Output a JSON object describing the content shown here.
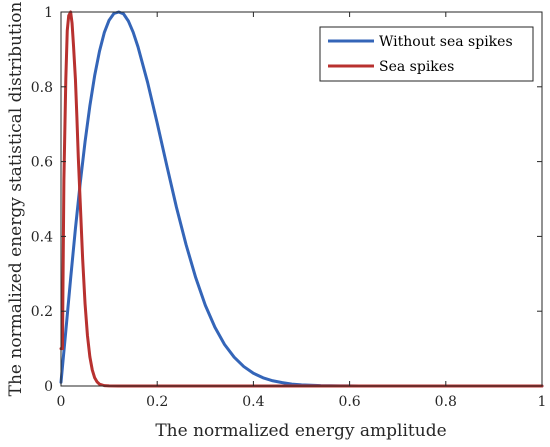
{
  "chart_data": {
    "type": "line",
    "title": "",
    "xlabel": "The normalized energy amplitude",
    "ylabel": "The normalized energy statistical distribution",
    "xlim": [
      0,
      1
    ],
    "ylim": [
      0,
      1
    ],
    "xticks": [
      "0",
      "0.2",
      "0.4",
      "0.6",
      "0.8",
      "1"
    ],
    "yticks": [
      "0",
      "0.2",
      "0.4",
      "0.6",
      "0.8",
      "1"
    ],
    "grid": false,
    "legend_position": "top-right",
    "series": [
      {
        "name": "Without sea spikes",
        "color": "#3465B8",
        "x": [
          0,
          0.01,
          0.02,
          0.03,
          0.04,
          0.05,
          0.06,
          0.07,
          0.08,
          0.09,
          0.1,
          0.11,
          0.12,
          0.13,
          0.14,
          0.15,
          0.16,
          0.18,
          0.2,
          0.22,
          0.24,
          0.26,
          0.28,
          0.3,
          0.32,
          0.34,
          0.36,
          0.38,
          0.4,
          0.42,
          0.44,
          0.46,
          0.48,
          0.5,
          0.52,
          0.54,
          0.56,
          0.58,
          0.6,
          0.62,
          0.64,
          0.66,
          0.68,
          0.7,
          0.75,
          0.8,
          0.85,
          0.9,
          0.95,
          1.0
        ],
        "values": [
          0.01,
          0.147,
          0.287,
          0.421,
          0.543,
          0.653,
          0.749,
          0.83,
          0.895,
          0.945,
          0.978,
          0.996,
          1.0,
          0.995,
          0.976,
          0.946,
          0.907,
          0.812,
          0.703,
          0.589,
          0.478,
          0.378,
          0.29,
          0.216,
          0.157,
          0.111,
          0.077,
          0.052,
          0.034,
          0.022,
          0.014,
          0.009,
          0.005,
          0.003,
          0.002,
          0.001,
          0.0007,
          0.0004,
          0.0002,
          0.0001,
          0,
          0,
          0,
          0,
          0,
          0,
          0,
          0,
          0,
          0
        ]
      },
      {
        "name": "Sea spikes",
        "color": "#B8312F",
        "x": [
          0,
          0.003,
          0.006,
          0.01,
          0.013,
          0.016,
          0.02,
          0.023,
          0.026,
          0.03,
          0.033,
          0.036,
          0.04,
          0.045,
          0.05,
          0.055,
          0.06,
          0.065,
          0.07,
          0.075,
          0.08,
          0.09,
          0.1,
          0.12,
          0.15,
          0.2,
          0.3,
          0.5,
          0.7,
          1.0
        ],
        "values": [
          0.1,
          0.1,
          0.55,
          0.82,
          0.95,
          0.99,
          1.0,
          0.97,
          0.91,
          0.82,
          0.72,
          0.61,
          0.49,
          0.34,
          0.22,
          0.135,
          0.078,
          0.043,
          0.022,
          0.011,
          0.005,
          0.001,
          0.0002,
          0,
          0,
          0,
          0,
          0,
          0,
          0
        ]
      }
    ]
  }
}
